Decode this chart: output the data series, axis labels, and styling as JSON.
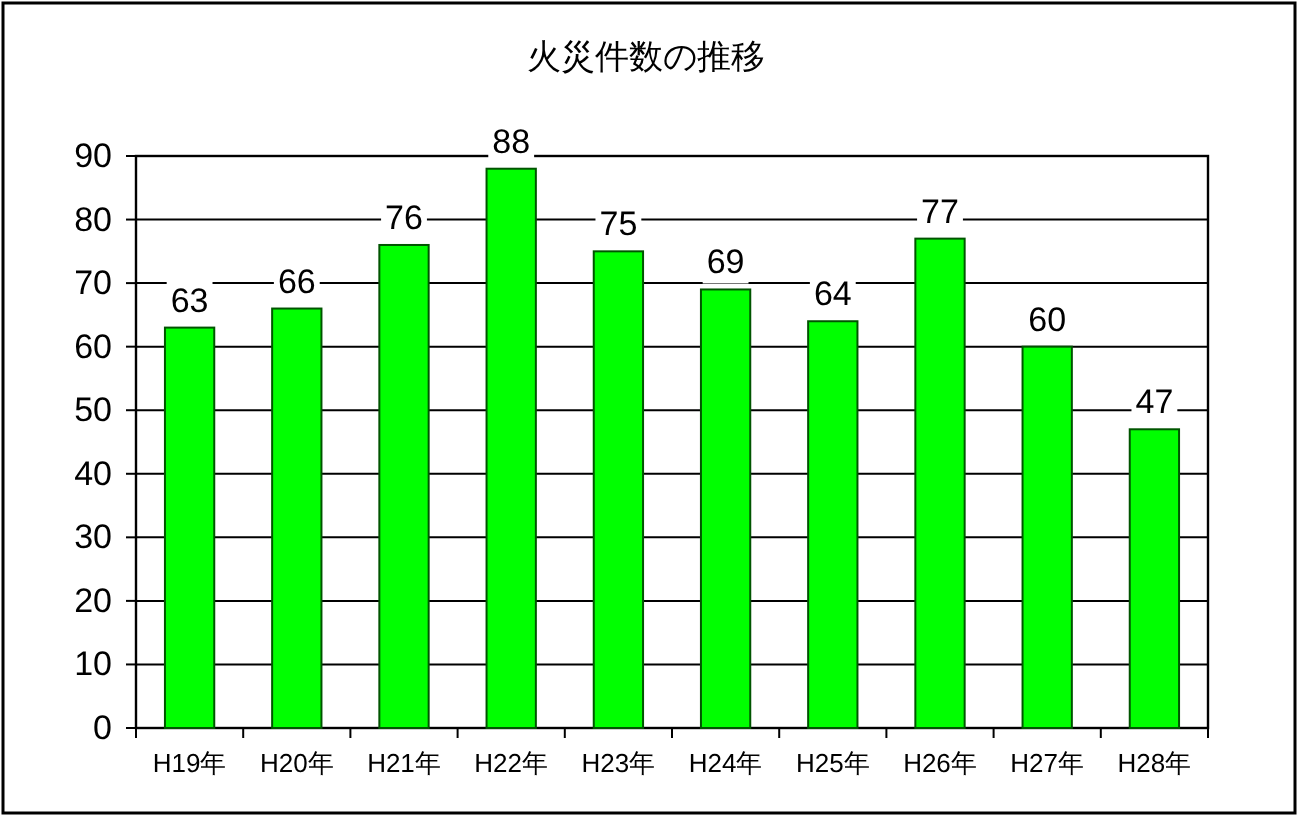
{
  "chart_data": {
    "type": "bar",
    "title": "火災件数の推移",
    "categories": [
      "H19年",
      "H20年",
      "H21年",
      "H22年",
      "H23年",
      "H24年",
      "H25年",
      "H26年",
      "H27年",
      "H28年"
    ],
    "values": [
      63,
      66,
      76,
      88,
      75,
      69,
      64,
      77,
      60,
      47
    ],
    "color": "#00ff00",
    "ylim": [
      0,
      90
    ],
    "yticks": [
      0,
      10,
      20,
      30,
      40,
      50,
      60,
      70,
      80,
      90
    ],
    "grid": "y",
    "data_labels": true
  }
}
